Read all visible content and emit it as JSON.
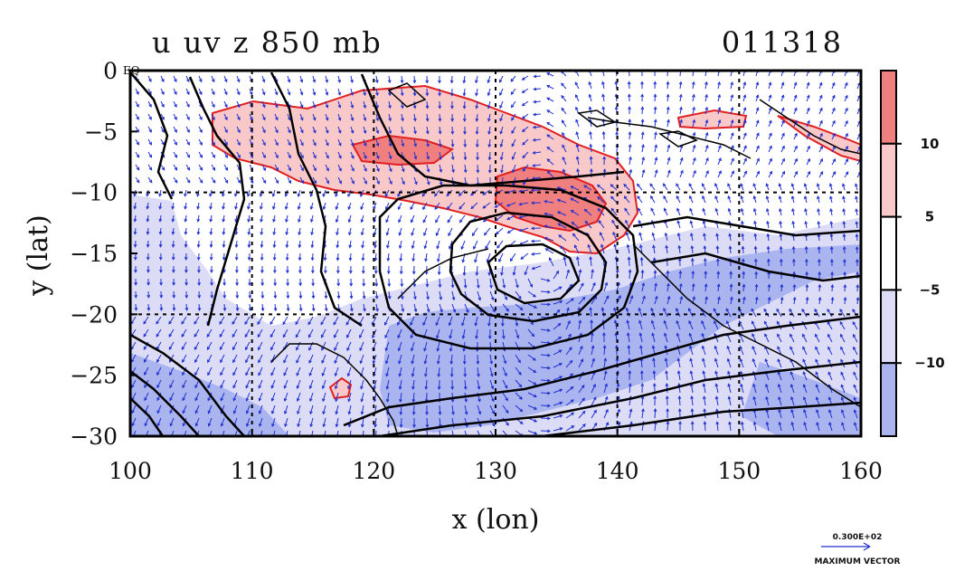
{
  "chart_data": {
    "type": "heatmap",
    "title_left": "u uv z 850 mb",
    "title_right": "011318",
    "xlabel": "x (lon)",
    "ylabel": "y (lat)",
    "xlim": [
      100,
      160
    ],
    "ylim": [
      -30,
      0
    ],
    "x_ticks": [
      "100",
      "110",
      "120",
      "130",
      "140",
      "150",
      "160"
    ],
    "y_ticks": [
      "0",
      "−5",
      "−10",
      "−15",
      "−20",
      "−25",
      "−30"
    ],
    "y_top_suffix": "EQ",
    "grid": true,
    "colorbar": {
      "levels": [
        "10",
        "5",
        "−5",
        "−10"
      ],
      "colors": [
        "#f08080",
        "#f9c8c8",
        "#ffffff",
        "#dcdcf6",
        "#aab4ef"
      ]
    },
    "vector_reference": {
      "magnitude": "0.300E+02",
      "label": "MAXIMUM VECTOR"
    },
    "colors": {
      "positive_contour": "#e02020",
      "vectors": "#2030d0",
      "height_contour": "#000000"
    }
  }
}
